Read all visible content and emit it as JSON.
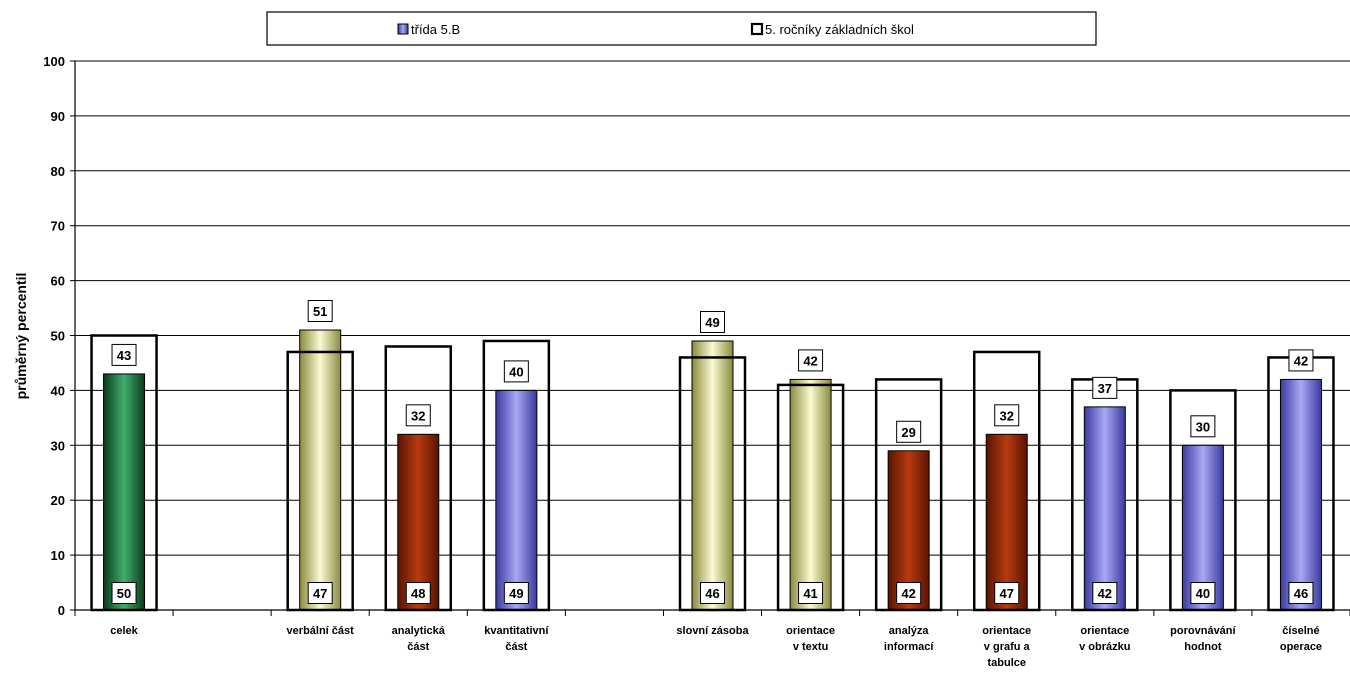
{
  "chart_data": {
    "type": "bar",
    "ylabel": "průměrný percentil",
    "ylim": [
      0,
      100
    ],
    "yticks": [
      "0",
      "10",
      "20",
      "30",
      "40",
      "50",
      "60",
      "70",
      "80",
      "90",
      "100"
    ],
    "grid": true,
    "legend_position": "top",
    "legend": {
      "class_label": "třída  5.B",
      "schools_label": "5. ročníky základních škol"
    },
    "categories": [
      [
        "celek"
      ],
      [],
      [
        "verbální část"
      ],
      [
        "analytická",
        "část"
      ],
      [
        "kvantitativní",
        "část"
      ],
      [],
      [
        "slovní zásoba"
      ],
      [
        "orientace",
        "v textu"
      ],
      [
        "analýza",
        "informací"
      ],
      [
        "orientace",
        "v grafu a",
        "tabulce"
      ],
      [
        "orientace",
        "v obrázku"
      ],
      [
        "porovnávání",
        "hodnot"
      ],
      [
        "číselné",
        "operace"
      ]
    ],
    "series": [
      {
        "name": "třída  5.B",
        "values": [
          43,
          null,
          51,
          32,
          40,
          null,
          49,
          42,
          29,
          32,
          37,
          30,
          42
        ],
        "colors": [
          "#1f6b3a",
          null,
          "#d8d890",
          "#8b2000",
          "#6a6ad8",
          null,
          "#d8d890",
          "#d8d890",
          "#8b2000",
          "#8b2000",
          "#6a6ad8",
          "#6a6ad8",
          "#6a6ad8"
        ]
      },
      {
        "name": "5. ročníky základních škol",
        "values": [
          50,
          null,
          47,
          48,
          49,
          null,
          46,
          41,
          42,
          47,
          42,
          40,
          46
        ]
      }
    ]
  },
  "colors": {
    "green": "#1f6b3a",
    "olive": "#d8d890",
    "red": "#8b2000",
    "blue": "#6a6ad8"
  }
}
